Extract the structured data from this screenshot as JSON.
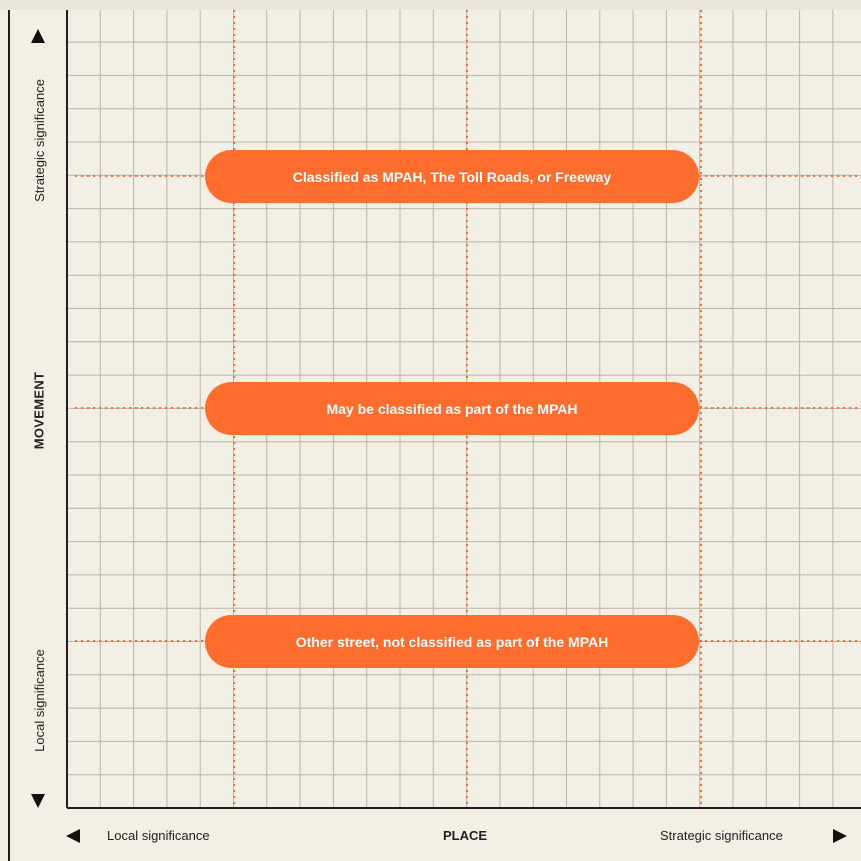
{
  "y_axis": {
    "title": "MOVEMENT",
    "top_label": "Strategic significance",
    "bottom_label": "Local significance"
  },
  "x_axis": {
    "title": "PLACE",
    "left_label": "Local significance",
    "right_label": "Strategic significance"
  },
  "bands": [
    {
      "label": "Classified as MPAH, The Toll Roads, or Freeway"
    },
    {
      "label": "May be classified as part of the MPAH"
    },
    {
      "label": "Other street, not classified as part of the MPAH"
    }
  ],
  "colors": {
    "background": "#f3efe5",
    "grid": "#b8b4ab",
    "guide": "#ff6d2e",
    "pill": "#ff6d2e",
    "axis": "#1f1f1f"
  },
  "icons": {
    "up": "arrow-up-icon",
    "down": "arrow-down-icon",
    "left": "arrow-left-icon",
    "right": "arrow-right-icon"
  }
}
